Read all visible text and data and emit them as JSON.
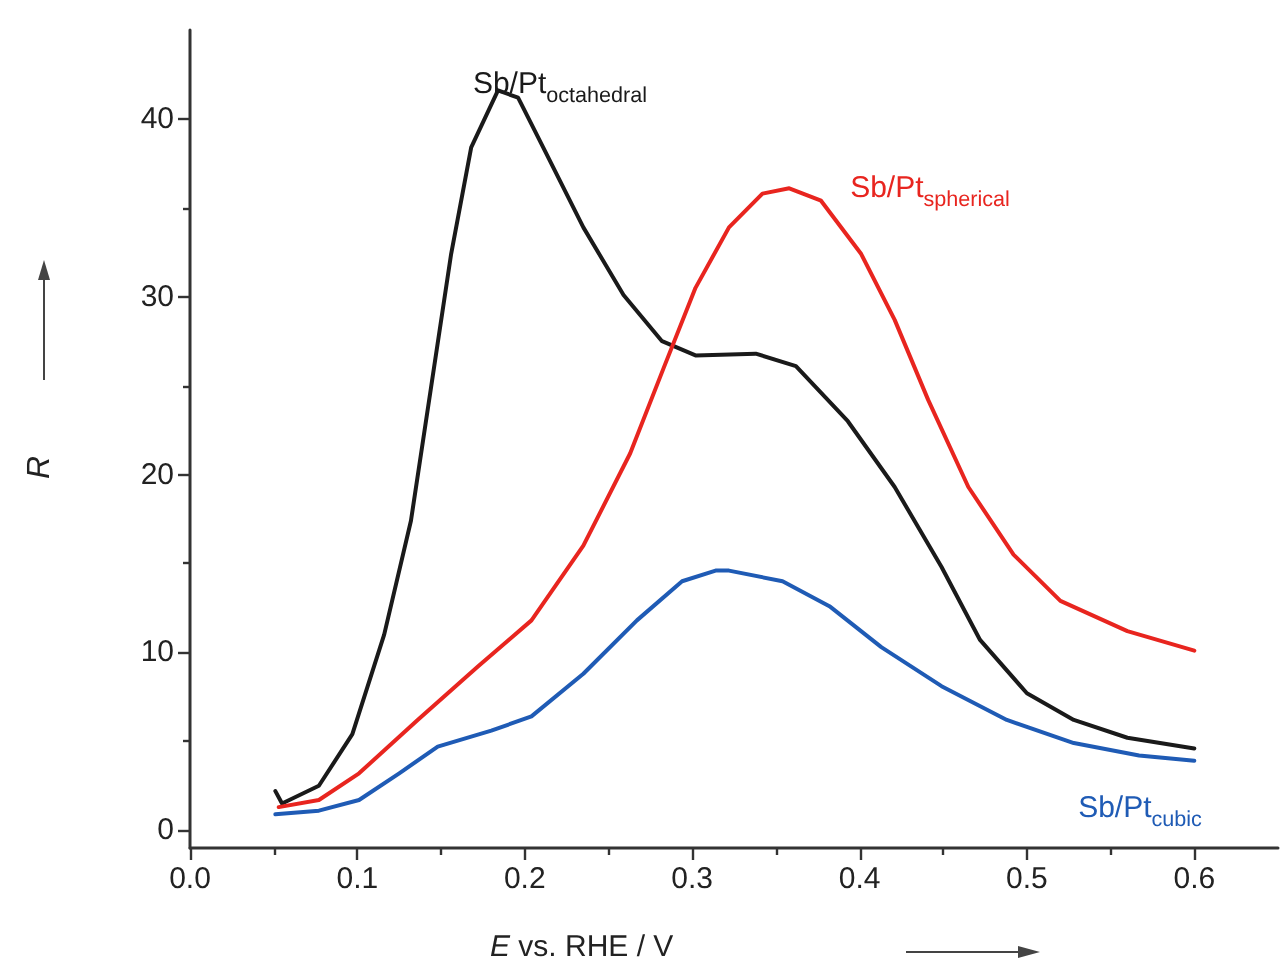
{
  "chart_data": {
    "type": "line",
    "xlabel": "E vs. RHE / V",
    "ylabel": "R",
    "xlim": [
      0,
      0.65
    ],
    "xticks": [
      {
        "value": 0,
        "label": "0.0"
      },
      0.1,
      0.2,
      0.3,
      0.4,
      0.5,
      0.6
    ],
    "ylim": [
      -1,
      45
    ],
    "yticks": [
      0,
      10,
      20,
      30,
      40
    ],
    "grid": false,
    "marker": "none",
    "line_style": "solid",
    "annotations": [
      "Sb/Pt$_{octahedral}$",
      "Sb/Pt$_{spherical}$",
      "Sb/Pt$_{cubic}$"
    ],
    "series": [
      {
        "color": "#1a1a1a",
        "x": [
          0.051,
          0.055,
          0.077,
          0.097,
          0.116,
          0.132,
          0.144,
          0.156,
          0.168,
          0.184,
          0.196,
          0.211,
          0.235,
          0.259,
          0.282,
          0.302,
          0.338,
          0.362,
          0.393,
          0.421,
          0.449,
          0.472,
          0.5,
          0.528,
          0.56,
          0.6
        ],
        "values": [
          2.2,
          1.5,
          2.5,
          5.4,
          11,
          17.4,
          24.9,
          32.4,
          38.4,
          41.6,
          41.2,
          38.4,
          33.9,
          30.1,
          27.5,
          26.7,
          26.8,
          26.1,
          23,
          19.3,
          14.8,
          10.7,
          7.7,
          6.2,
          5.2,
          4.6
        ]
      },
      {
        "color": "#e8251f",
        "x": [
          0.053,
          0.077,
          0.101,
          0.136,
          0.172,
          0.204,
          0.235,
          0.263,
          0.283,
          0.302,
          0.322,
          0.342,
          0.358,
          0.377,
          0.401,
          0.421,
          0.441,
          0.465,
          0.492,
          0.52,
          0.56,
          0.6
        ],
        "values": [
          1.3,
          1.7,
          3.2,
          6.2,
          9.2,
          11.8,
          16,
          21.2,
          26,
          30.5,
          33.9,
          35.8,
          36.1,
          35.4,
          32.4,
          28.7,
          24.2,
          19.3,
          15.5,
          12.9,
          11.2,
          10.1
        ]
      },
      {
        "color": "#1f5bb5",
        "x": [
          0.051,
          0.077,
          0.101,
          0.125,
          0.148,
          0.18,
          0.204,
          0.235,
          0.267,
          0.294,
          0.314,
          0.322,
          0.354,
          0.382,
          0.413,
          0.449,
          0.488,
          0.528,
          0.567,
          0.6
        ],
        "values": [
          0.9,
          1.1,
          1.7,
          3.2,
          4.7,
          5.6,
          6.4,
          8.8,
          11.8,
          14,
          14.6,
          14.6,
          14,
          12.6,
          10.3,
          8.1,
          6.2,
          4.9,
          4.2,
          3.9
        ]
      }
    ]
  }
}
